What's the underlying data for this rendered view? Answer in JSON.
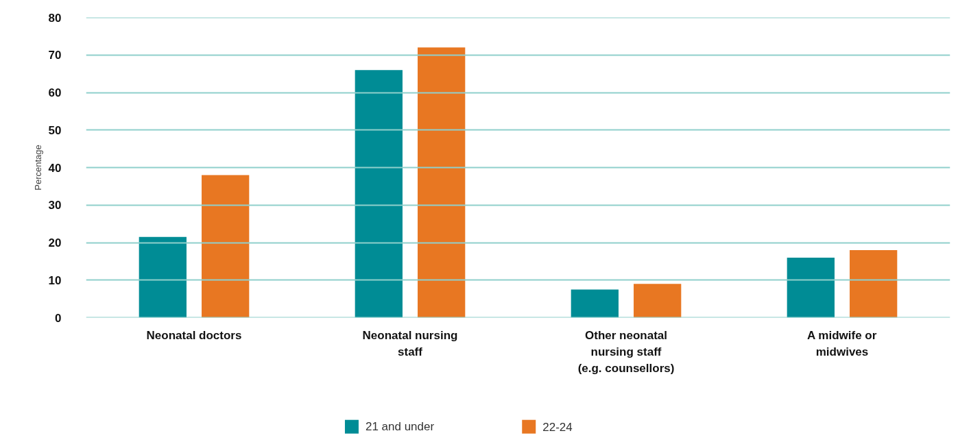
{
  "chart_data": {
    "type": "bar",
    "ylabel": "Percentage",
    "categories": [
      "Neonatal doctors",
      "Neonatal nursing staff",
      "Other neonatal nursing staff (e.g. counsellors)",
      "A midwife or midwives"
    ],
    "series": [
      {
        "name": "21 and under",
        "color": "#008c95",
        "values": [
          21.5,
          66,
          7.5,
          16
        ]
      },
      {
        "name": "22-24",
        "color": "#e87722",
        "values": [
          38,
          72,
          9,
          18
        ]
      }
    ],
    "ylim": [
      0,
      80
    ],
    "yticks": [
      0,
      10,
      20,
      30,
      40,
      50,
      60,
      70,
      80
    ],
    "grid": "y",
    "legend": "bottom"
  }
}
